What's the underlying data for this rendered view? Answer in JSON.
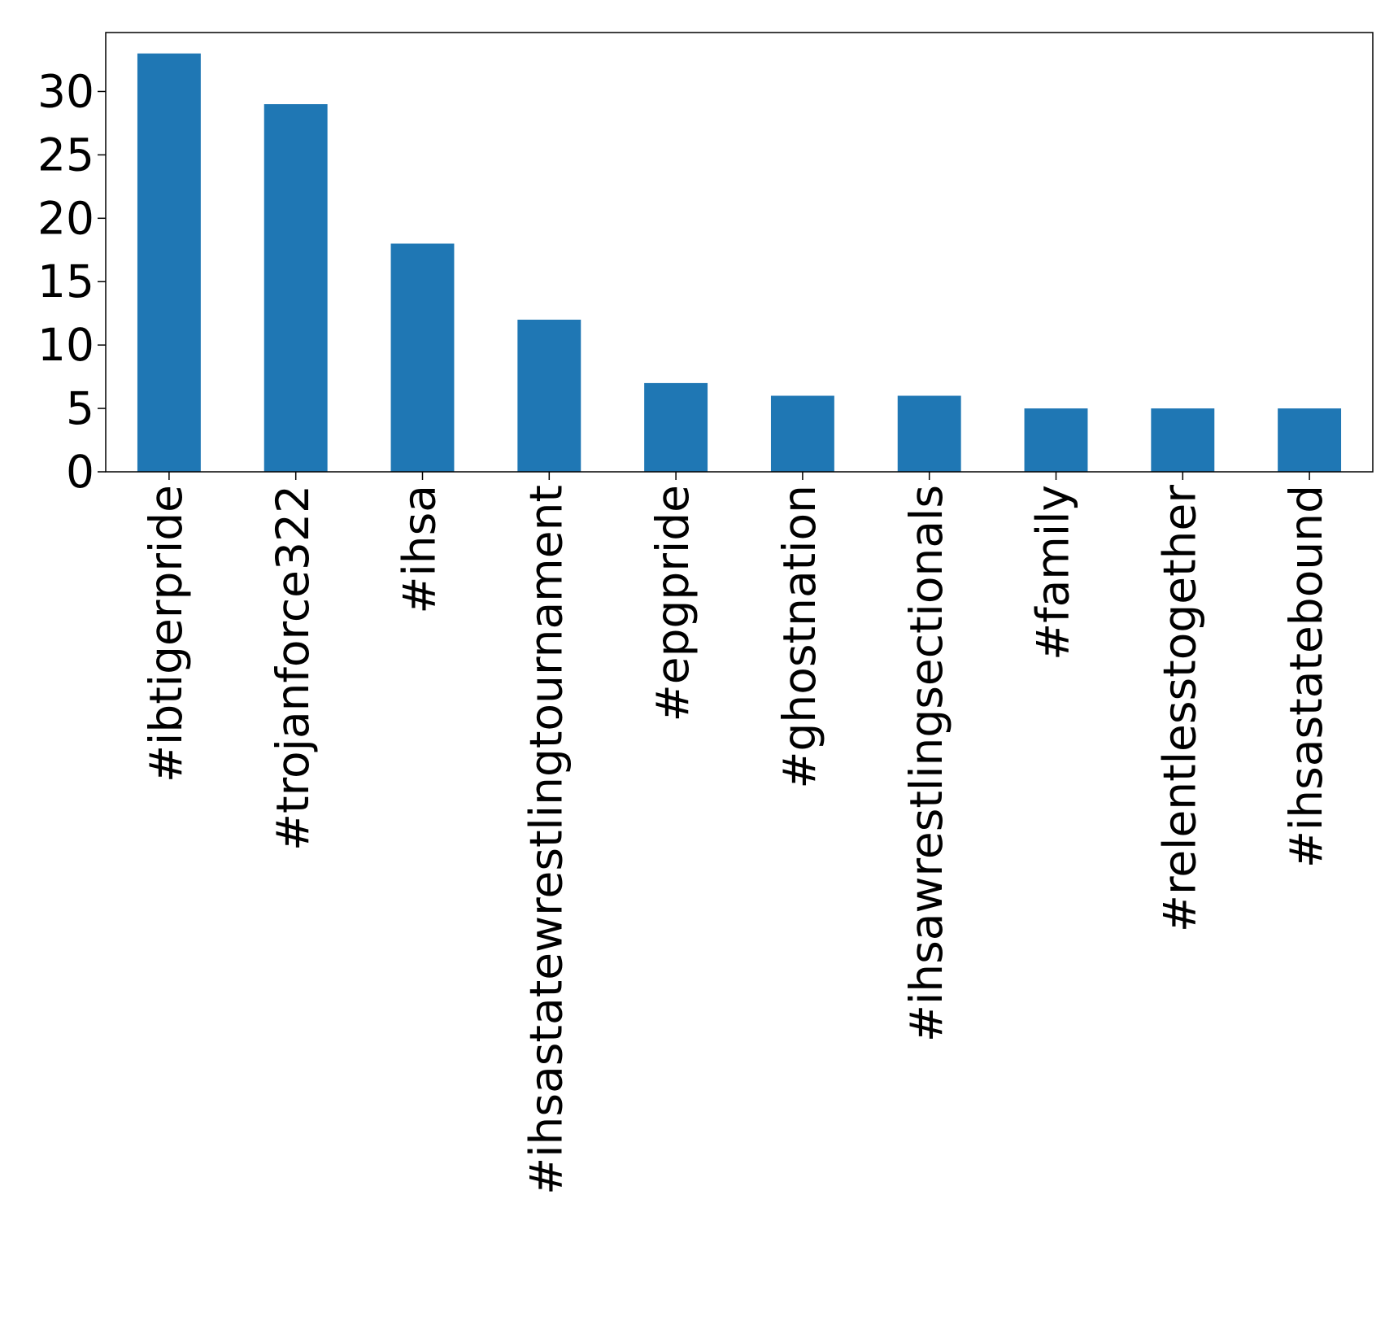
{
  "chart_data": {
    "type": "bar",
    "categories": [
      "#ibtigerpride",
      "#trojanforce322",
      "#ihsa",
      "#ihsastatewrestlingtournament",
      "#epgpride",
      "#ghostnation",
      "#ihsawrestlingsectionals",
      "#family",
      "#relentlesstogether",
      "#ihsastatebound"
    ],
    "values": [
      33,
      29,
      18,
      12,
      7,
      6,
      6,
      5,
      5,
      5
    ],
    "ylim": [
      0,
      34.65
    ],
    "yticks": [
      0,
      5,
      10,
      15,
      20,
      25,
      30
    ],
    "ytick_labels": [
      "0",
      "5",
      "10",
      "15",
      "20",
      "25",
      "30"
    ],
    "title": "",
    "xlabel": "",
    "ylabel": "",
    "grid": false,
    "bar_color": "#1f77b4"
  }
}
